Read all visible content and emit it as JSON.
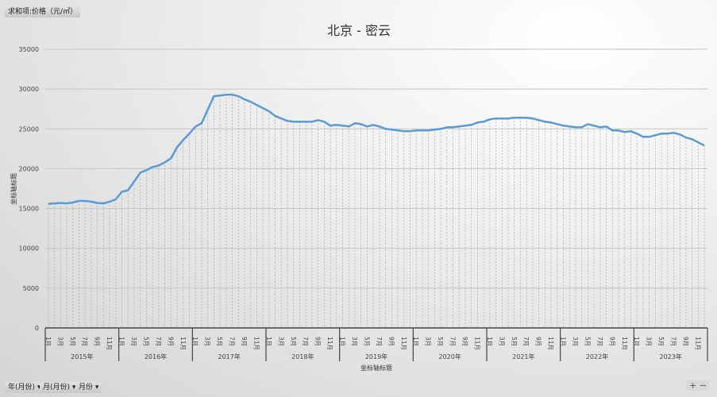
{
  "field_value_button": "求和项:价格（元/㎡）",
  "field_buttons": [
    "年(月份)",
    "月(月份)",
    "月份"
  ],
  "zoom_controls": {
    "plus": "+",
    "minus": "−"
  },
  "chart_data": {
    "type": "line",
    "title": "北京 - 密云",
    "xlabel": "坐标轴标题",
    "ylabel": "坐标轴标题",
    "ylim": [
      0,
      35000
    ],
    "yticks": [
      0,
      5000,
      10000,
      15000,
      20000,
      25000,
      30000,
      35000
    ],
    "grid": true,
    "years": [
      "2015年",
      "2016年",
      "2017年",
      "2018年",
      "2019年",
      "2020年",
      "2021年",
      "2022年",
      "2023年"
    ],
    "month_labels": [
      "1月",
      "",
      "3月",
      "",
      "5月",
      "",
      "7月",
      "",
      "9月",
      "",
      "11月",
      ""
    ],
    "line_color": "#5b9bd5",
    "values": [
      15600,
      15650,
      15700,
      15650,
      15750,
      15950,
      15950,
      15850,
      15700,
      15650,
      15850,
      16150,
      17100,
      17300,
      18400,
      19500,
      19800,
      20200,
      20400,
      20800,
      21300,
      22700,
      23600,
      24400,
      25300,
      25700,
      27400,
      29100,
      29200,
      29300,
      29300,
      29100,
      28700,
      28400,
      28000,
      27600,
      27200,
      26600,
      26300,
      26000,
      25900,
      25900,
      25900,
      25900,
      26100,
      25900,
      25400,
      25500,
      25400,
      25300,
      25700,
      25600,
      25300,
      25500,
      25300,
      25000,
      24900,
      24800,
      24700,
      24700,
      24800,
      24800,
      24800,
      24900,
      25000,
      25200,
      25200,
      25300,
      25400,
      25500,
      25800,
      25900,
      26200,
      26300,
      26300,
      26300,
      26400,
      26400,
      26400,
      26300,
      26100,
      25900,
      25800,
      25600,
      25400,
      25300,
      25200,
      25200,
      25600,
      25400,
      25200,
      25300,
      24800,
      24800,
      24600,
      24700,
      24400,
      24000,
      24000,
      24200,
      24400,
      24400,
      24500,
      24300,
      23900,
      23700,
      23300,
      22900
    ]
  }
}
